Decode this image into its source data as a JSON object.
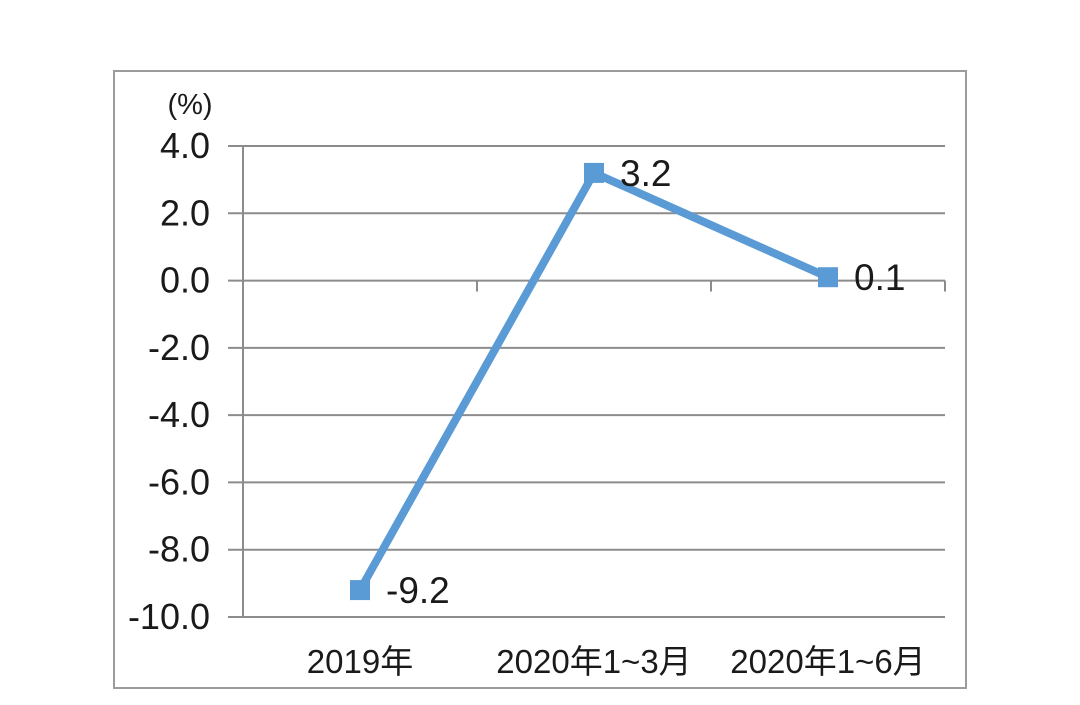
{
  "chart_data": {
    "type": "line",
    "title": "",
    "unit_label": "(%)",
    "categories": [
      "2019年",
      "2020年1~3月",
      "2020年1~6月"
    ],
    "series": [
      {
        "name": "growth-rate",
        "values": [
          -9.2,
          3.2,
          0.1
        ],
        "data_labels": [
          "-9.2",
          "3.2",
          "0.1"
        ],
        "marker": "square"
      }
    ],
    "xlabel": "",
    "ylabel": "(%)",
    "ylim": [
      -10.0,
      4.0
    ],
    "y_ticks": [
      4.0,
      2.0,
      0.0,
      -2.0,
      -4.0,
      -6.0,
      -8.0,
      -10.0
    ],
    "y_tick_labels": [
      "4.0",
      "2.0",
      "0.0",
      "-2.0",
      "-4.0",
      "-6.0",
      "-8.0",
      "-10.0"
    ],
    "grid": "horizontal",
    "legend_position": "none",
    "colors": {
      "series": "#5b9bd5",
      "grid": "#8c8c8c",
      "axis": "#8c8c8c",
      "text": "#1a1a1a",
      "frame": "#9b9b9b",
      "background": "#ffffff"
    }
  }
}
